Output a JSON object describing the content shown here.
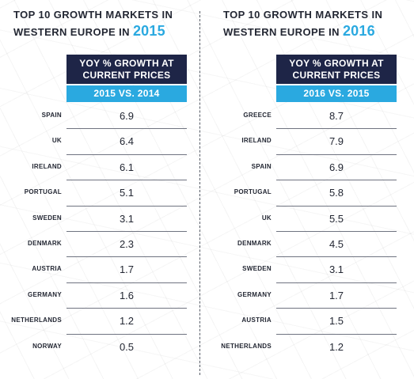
{
  "left": {
    "title_line1": "TOP 10 GROWTH MARKETS IN",
    "title_line2_prefix": "WESTERN EUROPE IN",
    "year": "2015",
    "header_line1": "YOY % GROWTH AT",
    "header_line2": "CURRENT PRICES",
    "subheader": "2015 VS. 2014",
    "rows": [
      {
        "country": "SPAIN",
        "value": "6.9"
      },
      {
        "country": "UK",
        "value": "6.4"
      },
      {
        "country": "IRELAND",
        "value": "6.1"
      },
      {
        "country": "PORTUGAL",
        "value": "5.1"
      },
      {
        "country": "SWEDEN",
        "value": "3.1"
      },
      {
        "country": "DENMARK",
        "value": "2.3"
      },
      {
        "country": "AUSTRIA",
        "value": "1.7"
      },
      {
        "country": "GERMANY",
        "value": "1.6"
      },
      {
        "country": "NETHERLANDS",
        "value": "1.2"
      },
      {
        "country": "NORWAY",
        "value": "0.5"
      }
    ]
  },
  "right": {
    "title_line1": "TOP 10 GROWTH MARKETS IN",
    "title_line2_prefix": "WESTERN EUROPE IN",
    "year": "2016",
    "header_line1": "YOY % GROWTH AT",
    "header_line2": "CURRENT PRICES",
    "subheader": "2016 VS. 2015",
    "rows": [
      {
        "country": "GREECE",
        "value": "8.7"
      },
      {
        "country": "IRELAND",
        "value": "7.9"
      },
      {
        "country": "SPAIN",
        "value": "6.9"
      },
      {
        "country": "PORTUGAL",
        "value": "5.8"
      },
      {
        "country": "UK",
        "value": "5.5"
      },
      {
        "country": "DENMARK",
        "value": "4.5"
      },
      {
        "country": "SWEDEN",
        "value": "3.1"
      },
      {
        "country": "GERMANY",
        "value": "1.7"
      },
      {
        "country": "AUSTRIA",
        "value": "1.5"
      },
      {
        "country": "NETHERLANDS",
        "value": "1.2"
      }
    ]
  },
  "colors": {
    "header_dark": "#1e2547",
    "header_cyan": "#2aa9e0",
    "year_accent": "#2aa9e0",
    "text": "#232733"
  }
}
